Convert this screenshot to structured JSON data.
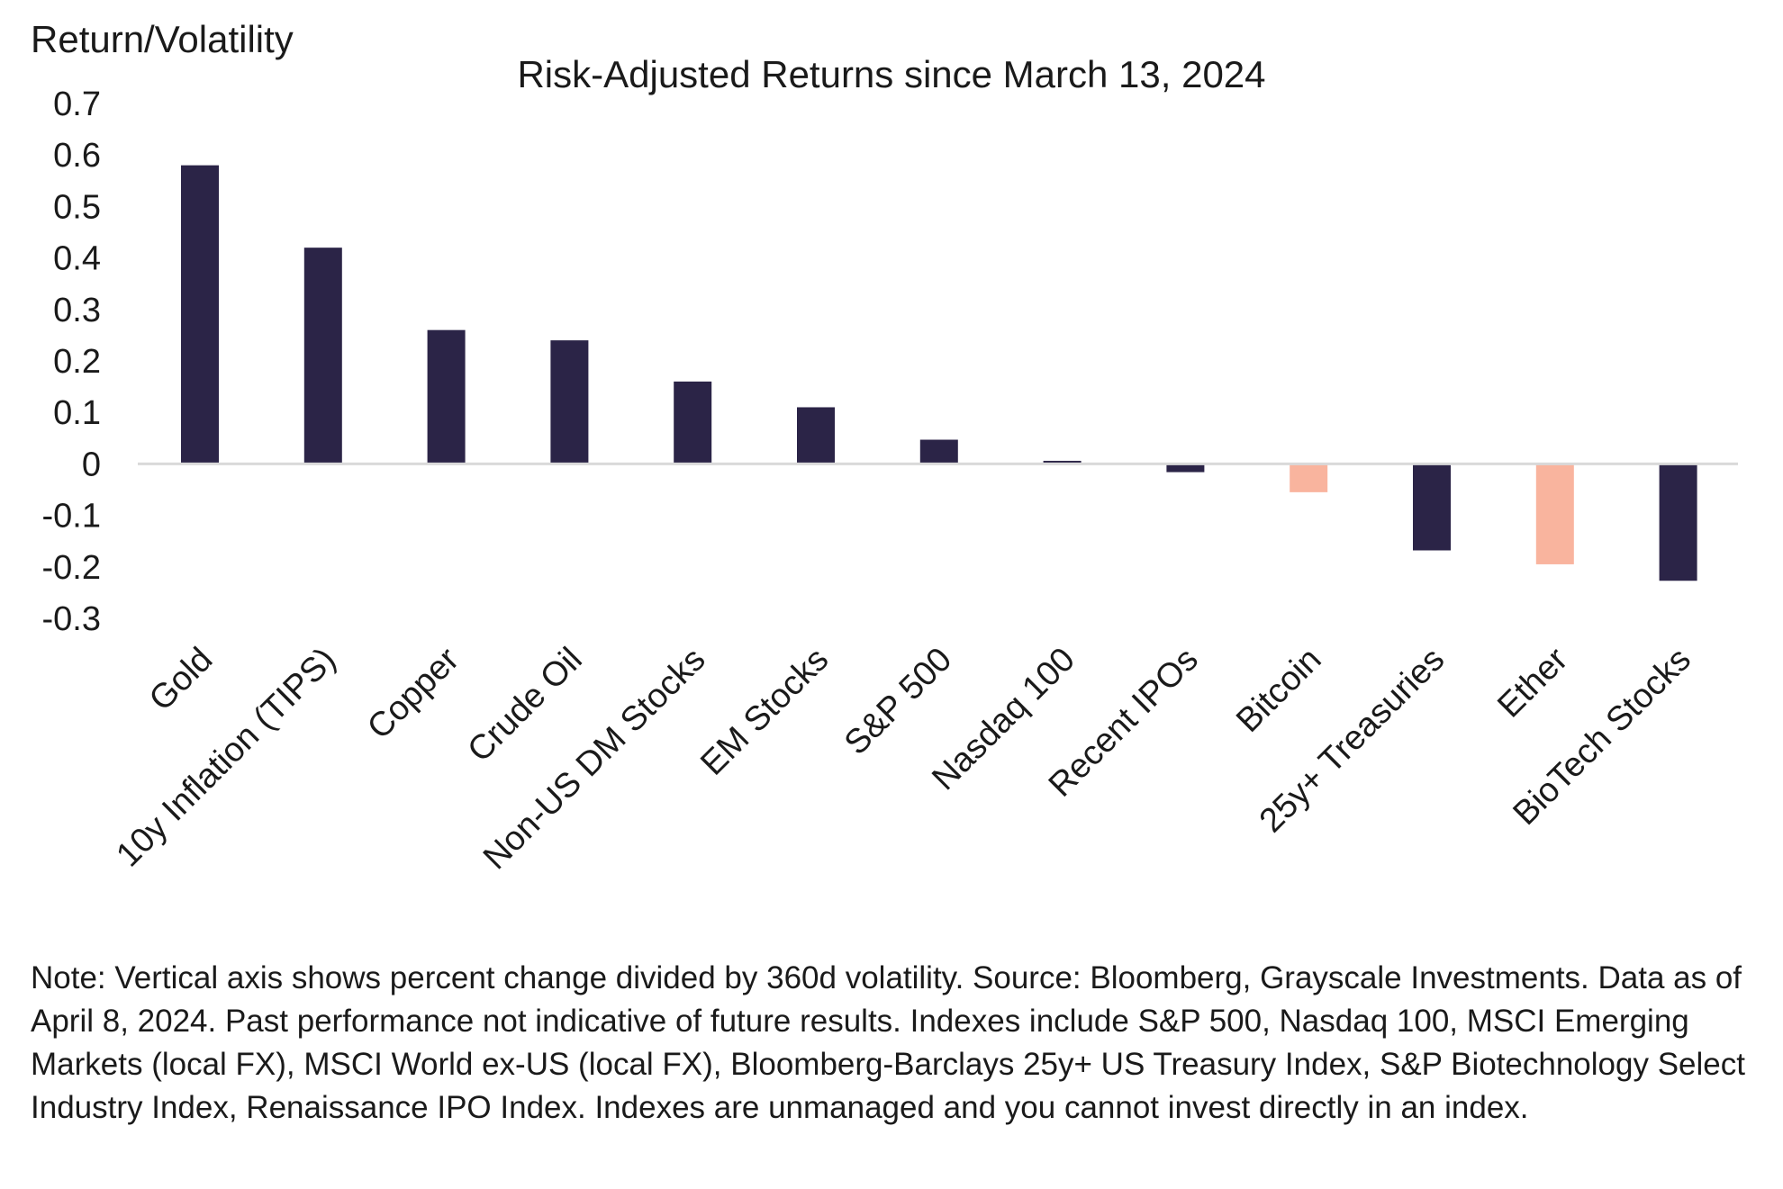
{
  "chart_data": {
    "type": "bar",
    "title": "Risk-Adjusted Returns since March 13, 2024",
    "ylabel": "Return/Volatility",
    "xlabel": "",
    "ylim": [
      -0.3,
      0.7
    ],
    "yticks": [
      "0.7",
      "0.6",
      "0.5",
      "0.4",
      "0.3",
      "0.2",
      "0.1",
      "0",
      "-0.1",
      "-0.2",
      "-0.3"
    ],
    "grid": false,
    "legend": "none",
    "categories": [
      "Gold",
      "10y Inflation (TIPS)",
      "Copper",
      "Crude Oil",
      "Non-US DM Stocks",
      "EM Stocks",
      "S&P 500",
      "Nasdaq 100",
      "Recent IPOs",
      "Bitcoin",
      "25y+ Treasuries",
      "Ether",
      "BioTech Stocks"
    ],
    "values": [
      0.58,
      0.42,
      0.26,
      0.24,
      0.16,
      0.11,
      0.047,
      0.006,
      -0.016,
      -0.055,
      -0.168,
      -0.195,
      -0.227
    ],
    "highlight_categories": [
      "Bitcoin",
      "Ether"
    ],
    "colors": {
      "bar": "#2b2447",
      "highlight": "#f9b49e",
      "axis": "#d9d9d9"
    }
  },
  "note": "Note: Vertical axis shows percent change divided by 360d volatility. Source: Bloomberg, Grayscale Investments. Data as of April 8, 2024. Past performance not indicative of future results. Indexes include S&P 500, Nasdaq 100, MSCI Emerging Markets (local FX), MSCI World ex-US (local FX),  Bloomberg-Barclays 25y+ US Treasury Index, S&P Biotechnology Select Industry Index, Renaissance IPO Index. Indexes are unmanaged and you cannot invest directly in an index."
}
